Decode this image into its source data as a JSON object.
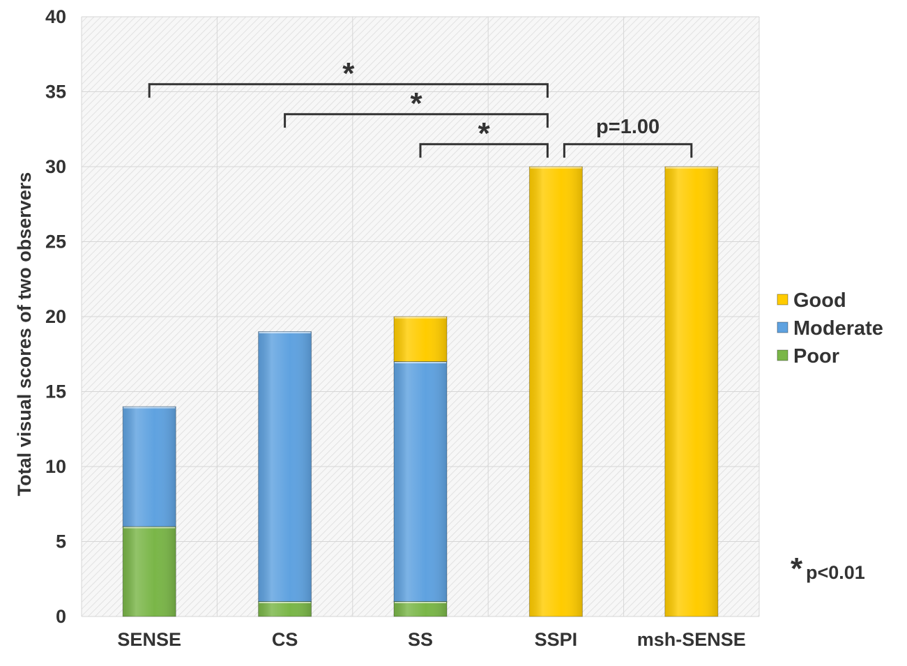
{
  "chart_data": {
    "type": "bar",
    "stacked": true,
    "title": "",
    "xlabel": "",
    "ylabel": "Total visual scores of two observers",
    "ylim": [
      0,
      40
    ],
    "yticks": [
      0,
      5,
      10,
      15,
      20,
      25,
      30,
      35,
      40
    ],
    "categories": [
      "SENSE",
      "CS",
      "SS",
      "SSPI",
      "msh-SENSE"
    ],
    "series": [
      {
        "name": "Poor",
        "color": "#7ab648",
        "values": [
          6,
          1,
          1,
          0,
          0
        ]
      },
      {
        "name": "Moderate",
        "color": "#5fa2e0",
        "values": [
          8,
          18,
          16,
          0,
          0
        ]
      },
      {
        "name": "Good",
        "color": "#ffcc00",
        "values": [
          0,
          0,
          3,
          30,
          30
        ]
      }
    ],
    "legend": {
      "position": "right",
      "order": [
        "Good",
        "Moderate",
        "Poor"
      ]
    },
    "grid": true,
    "annotations": {
      "brackets": [
        {
          "from": "SENSE",
          "to": "SSPI",
          "level": 35.5,
          "label": "*"
        },
        {
          "from": "CS",
          "to": "SSPI",
          "level": 33.5,
          "label": "*"
        },
        {
          "from": "SS",
          "to": "SSPI",
          "level": 31.5,
          "label": "*"
        },
        {
          "from": "SSPI",
          "to": "msh-SENSE",
          "level": 31.5,
          "label": "p=1.00"
        }
      ],
      "note_star": "*",
      "note_text": "p<0.01"
    }
  }
}
